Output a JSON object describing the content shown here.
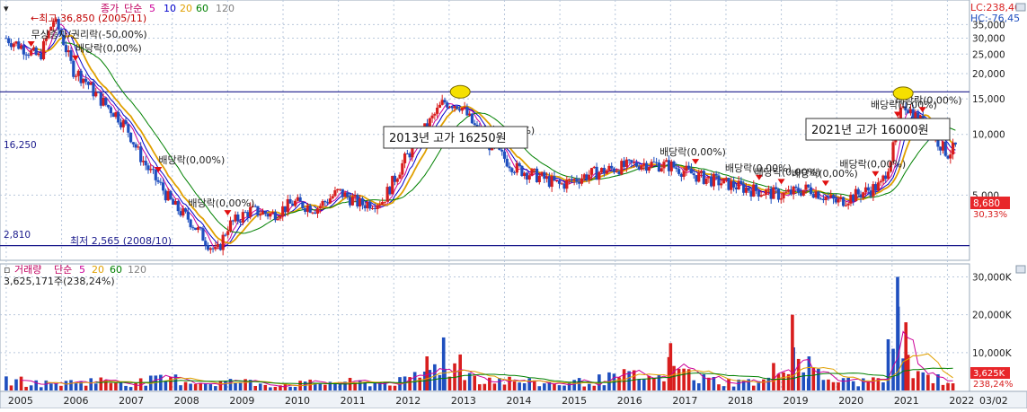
{
  "legend": {
    "price_label": "종가",
    "price_ma_type": "단순",
    "ma_periods": [
      "5",
      "10",
      "20",
      "60",
      "120"
    ],
    "ma_colors": [
      "#cc0099",
      "#0000cc",
      "#e0a000",
      "#008000",
      "#808080"
    ],
    "volume_label": "거래량",
    "volume_ma_type": "단순",
    "volume_ma_periods": [
      "5",
      "20",
      "60",
      "120"
    ],
    "period_max": "←최고 36,850 (2005/11)",
    "period_min": "최저 2,565 (2008/10)",
    "volume_info": "3,625,171주(238,24%)"
  },
  "indicators": {
    "lc": "LC:238,40",
    "hc": "HC:-76,45"
  },
  "price_axis": {
    "ticks": [
      "35,000",
      "30,000",
      "25,000",
      "20,000",
      "15,000",
      "10,000",
      "5,000"
    ],
    "current_label": "8,680",
    "current_pct": "30,33%",
    "hline_high_label": "16,250",
    "hline_low_label": "2,810"
  },
  "volume_axis": {
    "ticks": [
      "30,000K",
      "20,000K",
      "10,000K"
    ],
    "current_label": "3,625K",
    "current_pct": "238,24%"
  },
  "annotations": {
    "box_2013": "2013년  고가  16250원",
    "box_2021": "2021년  고가  16000원",
    "events": [
      "무상증자/권리락(-50,00%)",
      "배당락(0,00%)",
      "배당락(0,00%)",
      "배당락(0,00%)",
      "배당락(0,00%)",
      "배당락(0,00%)",
      "배당락(0,00%)",
      "배당락(0,00%)",
      "배당락(0,00%)",
      "배당락(0,00%)",
      "배당락(0,00%)",
      "배당락(0,00%)"
    ]
  },
  "colors": {
    "up": "#d81e1e",
    "down": "#1f4fbf",
    "grid": "#b9c8dc",
    "hline": "#1a1a8c",
    "highlight": "#f5e000",
    "current_price_bg": "#e8262a"
  },
  "x_axis": {
    "years": [
      "2005",
      "2006",
      "2007",
      "2008",
      "2009",
      "2010",
      "2011",
      "2012",
      "2013",
      "2014",
      "2015",
      "2016",
      "2017",
      "2018",
      "2019",
      "2020",
      "2021",
      "2022"
    ],
    "end_label": "03/02"
  },
  "chart_data": [
    {
      "type": "line",
      "name_hint": "price",
      "scale": "log",
      "ylim": [
        2500,
        37000
      ],
      "x": [
        2005.0,
        2005.3,
        2005.6,
        2005.85,
        2006.0,
        2006.2,
        2006.4,
        2006.6,
        2006.8,
        2007.0,
        2007.2,
        2007.4,
        2007.6,
        2007.8,
        2008.0,
        2008.3,
        2008.6,
        2008.8,
        2009.0,
        2009.4,
        2009.8,
        2010.2,
        2010.6,
        2011.0,
        2011.4,
        2011.8,
        2012.2,
        2012.6,
        2012.9,
        2013.2,
        2013.5,
        2013.8,
        2014.2,
        2014.6,
        2015.0,
        2015.5,
        2016.0,
        2016.5,
        2017.0,
        2017.5,
        2018.0,
        2018.5,
        2019.0,
        2019.5,
        2020.0,
        2020.5,
        2020.8,
        2021.0,
        2021.2,
        2021.4,
        2021.6,
        2021.8,
        2022.0,
        2022.15
      ],
      "y": [
        30000,
        27000,
        24000,
        36850,
        31000,
        21000,
        19000,
        16000,
        14000,
        12500,
        10500,
        8000,
        6500,
        5500,
        4500,
        3800,
        3000,
        2565,
        3500,
        4200,
        4000,
        4600,
        4300,
        5200,
        4500,
        4700,
        7500,
        11000,
        14500,
        14000,
        10500,
        8500,
        6800,
        6200,
        5600,
        6300,
        6800,
        7200,
        7000,
        6200,
        5700,
        5300,
        5000,
        5400,
        4600,
        5200,
        5600,
        8000,
        14500,
        12500,
        11000,
        9500,
        8000,
        8680
      ]
    },
    {
      "type": "bar",
      "name_hint": "volume",
      "unit": "K",
      "ylim": [
        0,
        32000
      ],
      "x": [
        2005.0,
        2005.8,
        2006.5,
        2007.3,
        2008.0,
        2008.6,
        2009.2,
        2009.8,
        2010.4,
        2011.0,
        2011.6,
        2012.2,
        2012.6,
        2012.9,
        2013.2,
        2013.6,
        2014.0,
        2014.5,
        2015.0,
        2015.6,
        2016.2,
        2016.8,
        2017.0,
        2017.5,
        2018.1,
        2018.7,
        2019.2,
        2019.5,
        2019.9,
        2020.4,
        2020.8,
        2021.1,
        2021.25,
        2021.4,
        2021.6,
        2021.8,
        2022.0,
        2022.15
      ],
      "y": [
        5200,
        3200,
        5000,
        4000,
        5800,
        3800,
        4500,
        3000,
        3400,
        4200,
        3800,
        4500,
        9000,
        14000,
        9500,
        6000,
        5200,
        3800,
        3400,
        4800,
        7200,
        5400,
        12500,
        6000,
        4200,
        4400,
        20000,
        9000,
        5200,
        4000,
        6000,
        30000,
        18000,
        6500,
        7500,
        6000,
        4500,
        3625
      ]
    }
  ]
}
